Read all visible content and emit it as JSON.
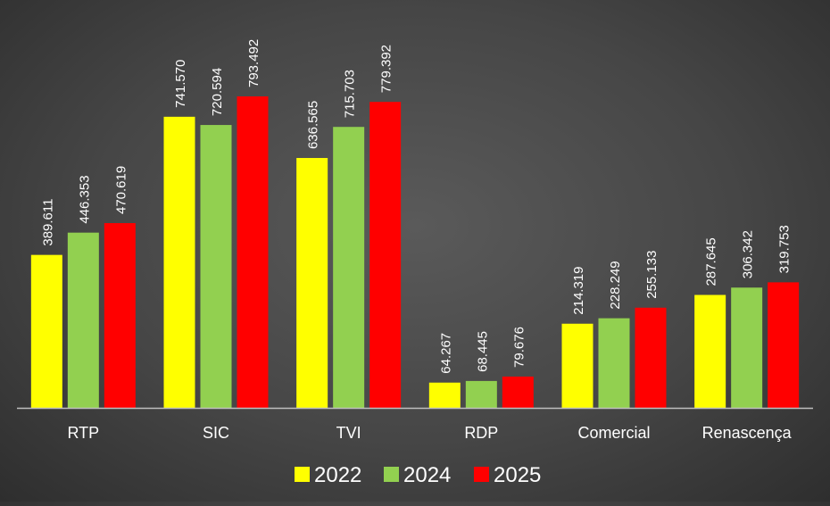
{
  "chart_data": {
    "type": "bar",
    "title": "",
    "xlabel": "",
    "ylabel": "",
    "categories": [
      "RTP",
      "SIC",
      "TVI",
      "RDP",
      "Comercial",
      "Renascença"
    ],
    "series": [
      {
        "name": "2022",
        "color": "#ffff00",
        "values": [
          389.611,
          741.57,
          636.565,
          64.267,
          214.319,
          287.645
        ],
        "labels": [
          "389.611",
          "741.570",
          "636.565",
          "64.267",
          "214.319",
          "287.645"
        ]
      },
      {
        "name": "2024",
        "color": "#92d050",
        "values": [
          446.353,
          720.594,
          715.703,
          68.445,
          228.249,
          306.342
        ],
        "labels": [
          "446.353",
          "720.594",
          "715.703",
          "68.445",
          "228.249",
          "306.342"
        ]
      },
      {
        "name": "2025",
        "color": "#ff0000",
        "values": [
          470.619,
          793.492,
          779.392,
          79.676,
          255.133,
          319.753
        ],
        "labels": [
          "470.619",
          "793.492",
          "779.392",
          "79.676",
          "255.133",
          "319.753"
        ]
      }
    ],
    "ylim": [
      0,
      793.492
    ],
    "grid": false,
    "legend_position": "bottom",
    "axis_color": "#bfbfbf",
    "label_color": "#ffffff"
  }
}
